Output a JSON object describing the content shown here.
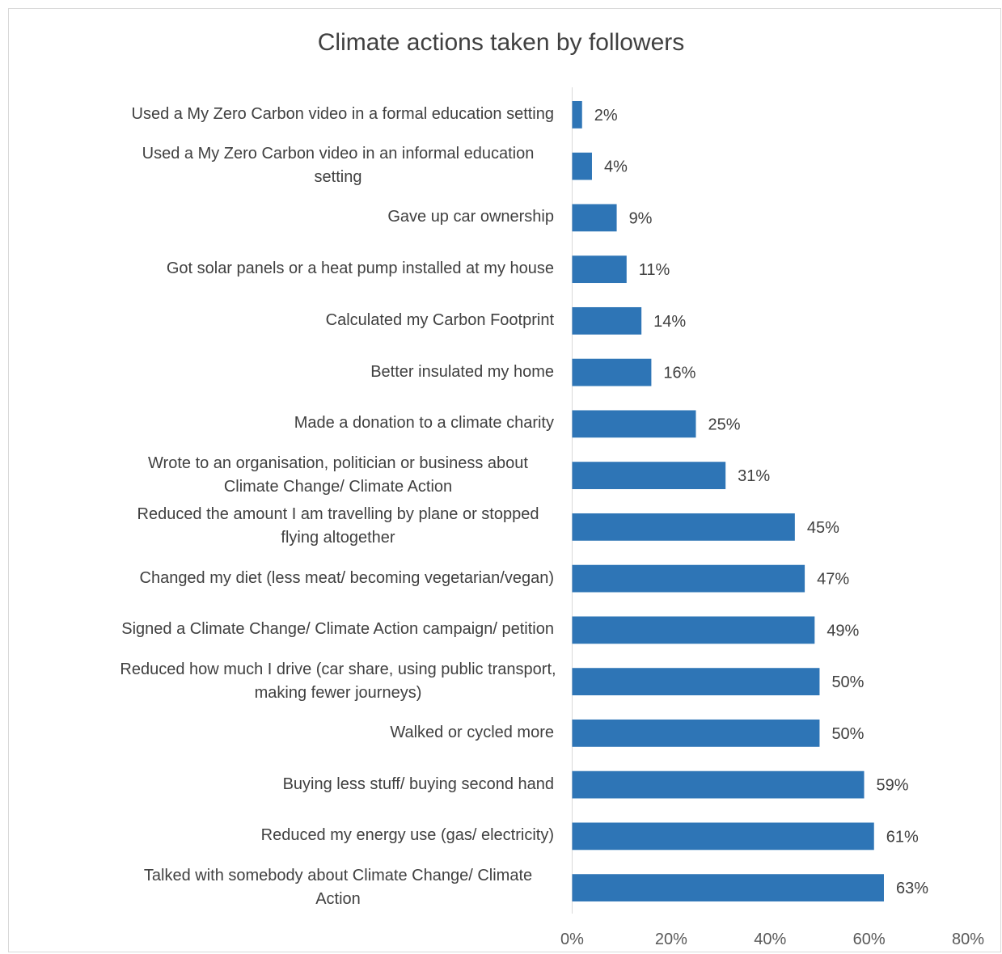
{
  "chart_data": {
    "type": "bar",
    "orientation": "horizontal",
    "title": "Climate actions taken by followers",
    "xlabel": "",
    "ylabel": "",
    "xlim": [
      0,
      80
    ],
    "x_ticks": [
      "0%",
      "20%",
      "40%",
      "60%",
      "80%"
    ],
    "x_tick_values": [
      0,
      20,
      40,
      60,
      80
    ],
    "grid": false,
    "legend": "none",
    "bar_color": "#2e75b6",
    "categories": [
      "Used a My Zero Carbon video in a formal education setting",
      "Used a My Zero Carbon video in an informal education setting",
      "Gave up car ownership",
      "Got solar panels or a heat pump installed at my house",
      "Calculated my Carbon Footprint",
      "Better insulated my home",
      "Made a donation to a climate charity",
      "Wrote to an organisation, politician or business about Climate Change/ Climate Action",
      "Reduced the amount I am travelling by plane or stopped flying altogether",
      "Changed my diet (less meat/ becoming vegetarian/vegan)",
      "Signed a Climate Change/ Climate Action campaign/ petition",
      "Reduced how much I drive (car share, using public transport, making fewer journeys)",
      "Walked or cycled more",
      "Buying less stuff/ buying second hand",
      "Reduced my energy use (gas/ electricity)",
      "Talked with somebody about Climate Change/ Climate Action"
    ],
    "category_label_lines": [
      [
        "Used a My Zero Carbon video in a formal education setting"
      ],
      [
        "Used a My Zero Carbon video in an informal education",
        "setting"
      ],
      [
        "Gave up car ownership"
      ],
      [
        "Got solar panels or a heat pump installed at my house"
      ],
      [
        "Calculated my Carbon Footprint"
      ],
      [
        "Better insulated my home"
      ],
      [
        "Made a donation to a climate charity"
      ],
      [
        "Wrote to an organisation, politician or business about",
        "Climate Change/ Climate Action"
      ],
      [
        "Reduced the amount I am travelling by plane or stopped",
        "flying altogether"
      ],
      [
        "Changed my diet (less meat/ becoming vegetarian/vegan)"
      ],
      [
        "Signed a Climate Change/ Climate Action campaign/ petition"
      ],
      [
        "Reduced how much I drive (car share, using public transport,",
        "making fewer journeys)"
      ],
      [
        "Walked or cycled more"
      ],
      [
        "Buying less stuff/ buying second hand"
      ],
      [
        "Reduced my energy use (gas/ electricity)"
      ],
      [
        "Talked with somebody about Climate Change/ Climate",
        "Action"
      ]
    ],
    "values": [
      2,
      4,
      9,
      11,
      14,
      16,
      25,
      31,
      45,
      47,
      49,
      50,
      50,
      59,
      61,
      63
    ],
    "data_labels": [
      "2%",
      "4%",
      "9%",
      "11%",
      "14%",
      "16%",
      "25%",
      "31%",
      "45%",
      "47%",
      "49%",
      "50%",
      "50%",
      "59%",
      "61%",
      "63%"
    ]
  }
}
